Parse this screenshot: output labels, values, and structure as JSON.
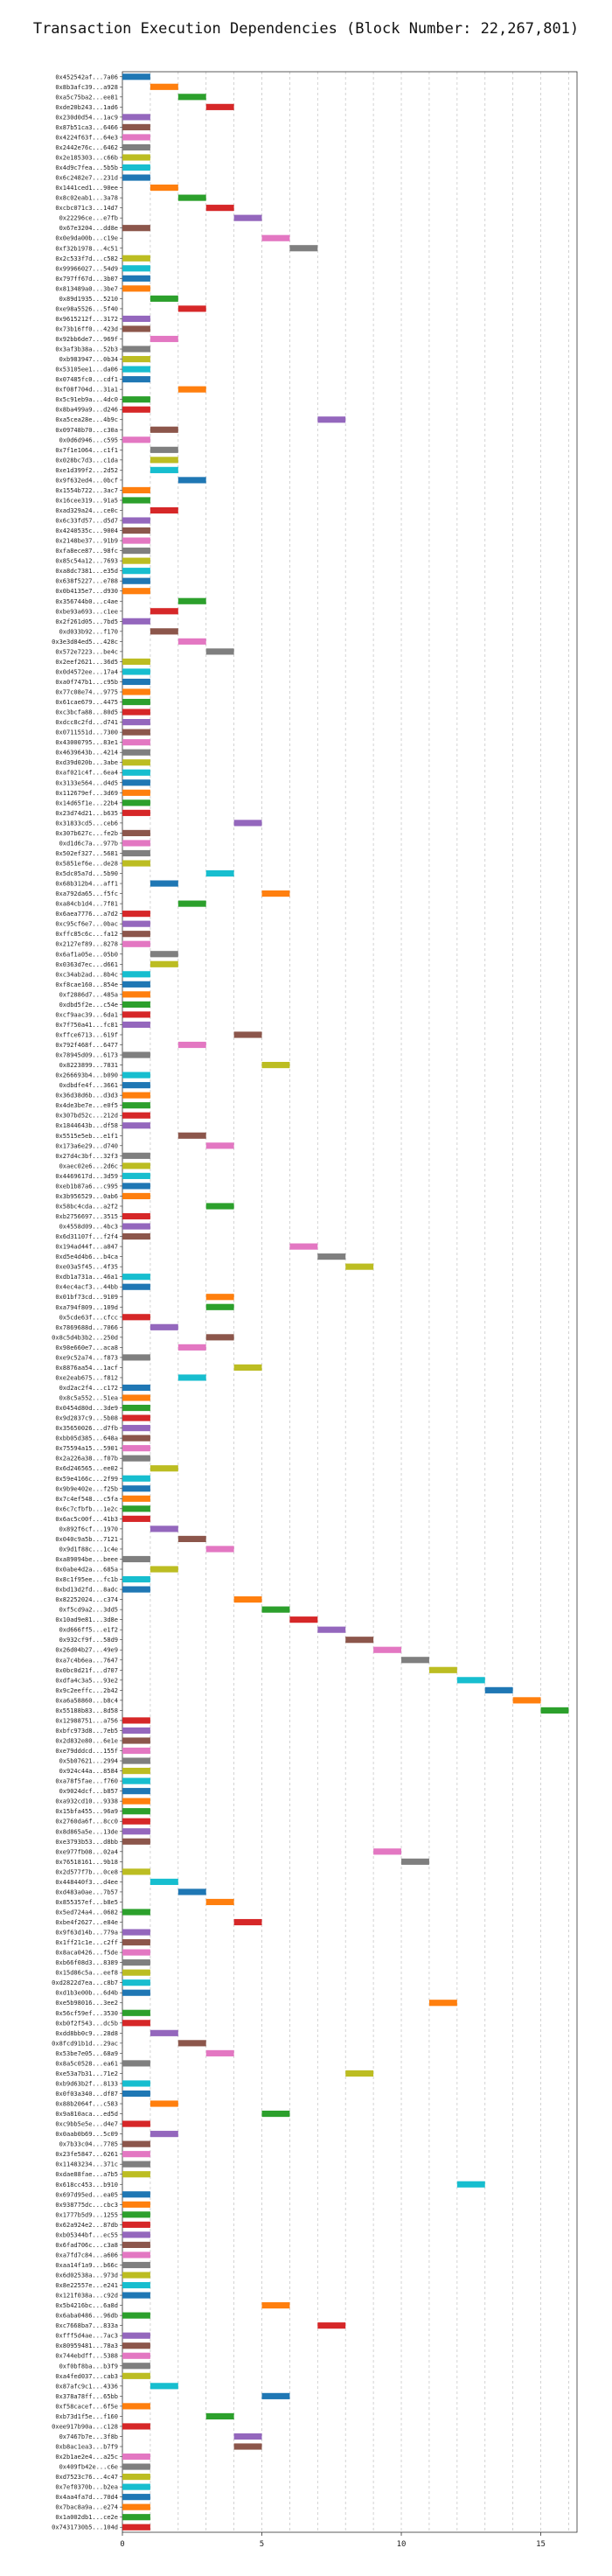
{
  "chart_data": {
    "type": "bar",
    "orientation": "horizontal",
    "title": "Transaction Execution Dependencies (Block Number: 22,267,801)",
    "xlabel": "",
    "ylabel": "",
    "xlim": [
      0,
      16.3
    ],
    "x_ticks": [
      0,
      5,
      10,
      15
    ],
    "grid": true,
    "palette": [
      "#1f77b4",
      "#ff7f0e",
      "#2ca02c",
      "#d62728",
      "#9467bd",
      "#8c564b",
      "#e377c2",
      "#7f7f7f",
      "#bcbd22",
      "#17becf"
    ],
    "transactions": [
      {
        "label": "0x452542af...7a06",
        "start": 0
      },
      {
        "label": "0x8b3afc39...a928",
        "start": 1
      },
      {
        "label": "0xa5c75ba2...ee81",
        "start": 2
      },
      {
        "label": "0xde20b243...1ad6",
        "start": 3
      },
      {
        "label": "0x230d0d54...1ac9",
        "start": 0
      },
      {
        "label": "0x87b51ca3...6466",
        "start": 0
      },
      {
        "label": "0x4224f63f...64e3",
        "start": 0
      },
      {
        "label": "0x2442e76c...6462",
        "start": 0
      },
      {
        "label": "0x2e185303...c66b",
        "start": 0
      },
      {
        "label": "0x4d9c7fea...5b5b",
        "start": 0
      },
      {
        "label": "0x6c2482e7...231d",
        "start": 0
      },
      {
        "label": "0x1441ced1...90ee",
        "start": 1
      },
      {
        "label": "0x8c02eab1...3a78",
        "start": 2
      },
      {
        "label": "0xcbc071c3...14d7",
        "start": 3
      },
      {
        "label": "0x22296ce...e7fb",
        "start": 4
      },
      {
        "label": "0x67e3204...dd8e",
        "start": 0
      },
      {
        "label": "0x0e9da00b...c19e",
        "start": 5
      },
      {
        "label": "0xf32b1978...4c51",
        "start": 6
      },
      {
        "label": "0x2c533f7d...c582",
        "start": 0
      },
      {
        "label": "0x99966027...54d9",
        "start": 0
      },
      {
        "label": "0x797ff67d...3b07",
        "start": 0
      },
      {
        "label": "0x813489a0...3be7",
        "start": 0
      },
      {
        "label": "0x89d1935...5210",
        "start": 1
      },
      {
        "label": "0xe98a5526...5f40",
        "start": 2
      },
      {
        "label": "0x9615212f...3172",
        "start": 0
      },
      {
        "label": "0x73b16ff0...423d",
        "start": 0
      },
      {
        "label": "0x92bb6de7...969f",
        "start": 1
      },
      {
        "label": "0x3af3b38a...52b3",
        "start": 0
      },
      {
        "label": "0xb983947...0b34",
        "start": 0
      },
      {
        "label": "0x53105ee1...da06",
        "start": 0
      },
      {
        "label": "0x07485fc0...cdf1",
        "start": 0
      },
      {
        "label": "0xf08f704d...31a1",
        "start": 2
      },
      {
        "label": "0x5c91eb9a...4dc0",
        "start": 0
      },
      {
        "label": "0x8ba499a9...d246",
        "start": 0
      },
      {
        "label": "0xa5cea28e...4b9c",
        "start": 7
      },
      {
        "label": "0x09748b70...c30a",
        "start": 1
      },
      {
        "label": "0x0d6d946...c595",
        "start": 0
      },
      {
        "label": "0x7f1e1064...c1f1",
        "start": 1
      },
      {
        "label": "0x028bc7d3...c1da",
        "start": 1
      },
      {
        "label": "0xe1d399f2...2d52",
        "start": 1
      },
      {
        "label": "0x9f632ed4...0bcf",
        "start": 2
      },
      {
        "label": "0x1554b722...3ac7",
        "start": 0
      },
      {
        "label": "0x16cee319...91a5",
        "start": 0
      },
      {
        "label": "0xad329a24...ce0c",
        "start": 1
      },
      {
        "label": "0x6c33fd57...d5d7",
        "start": 0
      },
      {
        "label": "0x4240535c...9004",
        "start": 0
      },
      {
        "label": "0x2148be37...91b9",
        "start": 0
      },
      {
        "label": "0xfa8ece87...98fc",
        "start": 0
      },
      {
        "label": "0x85c54a12...7693",
        "start": 0
      },
      {
        "label": "0xa8dc7381...e35d",
        "start": 0
      },
      {
        "label": "0x638f5227...e788",
        "start": 0
      },
      {
        "label": "0x0b4135e7...d930",
        "start": 0
      },
      {
        "label": "0x356744b0...c4ae",
        "start": 2
      },
      {
        "label": "0xbe93a693...c1ee",
        "start": 1
      },
      {
        "label": "0x2f261d05...7bd5",
        "start": 0
      },
      {
        "label": "0xd033b92...f170",
        "start": 1
      },
      {
        "label": "0x3e3d84ed5...428c",
        "start": 2
      },
      {
        "label": "0x572e7223...be4c",
        "start": 3
      },
      {
        "label": "0x2eef2621...36d5",
        "start": 0
      },
      {
        "label": "0x0d4572ee...17a4",
        "start": 0
      },
      {
        "label": "0xa0f747b1...c95b",
        "start": 0
      },
      {
        "label": "0x77c08e74...9775",
        "start": 0
      },
      {
        "label": "0x61cae679...4475",
        "start": 0
      },
      {
        "label": "0xc3bcfa88...80d5",
        "start": 0
      },
      {
        "label": "0xdcc8c2fd...d741",
        "start": 0
      },
      {
        "label": "0x0711551d...7300",
        "start": 0
      },
      {
        "label": "0x43000795...83e1",
        "start": 0
      },
      {
        "label": "0x4639643b...4214",
        "start": 0
      },
      {
        "label": "0xd39d020b...3abe",
        "start": 0
      },
      {
        "label": "0xaf021c4f...6ea4",
        "start": 0
      },
      {
        "label": "0x3133e564...d4d5",
        "start": 0
      },
      {
        "label": "0x112679ef...3d69",
        "start": 0
      },
      {
        "label": "0x14d65f1e...22b4",
        "start": 0
      },
      {
        "label": "0x23d74d21...b635",
        "start": 0
      },
      {
        "label": "0x31833cd5...ceb6",
        "start": 4
      },
      {
        "label": "0x307b627c...fe2b",
        "start": 0
      },
      {
        "label": "0xd1d6c7a...977b",
        "start": 0
      },
      {
        "label": "0x502ef327...5681",
        "start": 0
      },
      {
        "label": "0x5851ef6e...de28",
        "start": 0
      },
      {
        "label": "0x5dc05a7d...5b90",
        "start": 3
      },
      {
        "label": "0x68b312b4...aff1",
        "start": 1
      },
      {
        "label": "0xa792da65...f5fc",
        "start": 5
      },
      {
        "label": "0xa84cb1d4...7f81",
        "start": 2
      },
      {
        "label": "0x6aea7776...a7d2",
        "start": 0
      },
      {
        "label": "0xc95cf6e7...0bac",
        "start": 0
      },
      {
        "label": "0xffc85c6c...fa12",
        "start": 0
      },
      {
        "label": "0x2127ef89...8278",
        "start": 0
      },
      {
        "label": "0x6af1a05e...05b0",
        "start": 1
      },
      {
        "label": "0x0363d7ec...d661",
        "start": 1
      },
      {
        "label": "0xc34ab2ad...8b4c",
        "start": 0
      },
      {
        "label": "0xf8cae160...854e",
        "start": 0
      },
      {
        "label": "0xf2886d7...485a",
        "start": 0
      },
      {
        "label": "0xdbd5f2e...c54e",
        "start": 0
      },
      {
        "label": "0xcf9aac39...6da1",
        "start": 0
      },
      {
        "label": "0x7f750a41...fc81",
        "start": 0
      },
      {
        "label": "0xffce6713...619f",
        "start": 4
      },
      {
        "label": "0x792f468f...6477",
        "start": 2
      },
      {
        "label": "0x78945d09...6173",
        "start": 0
      },
      {
        "label": "0x8223899...7831",
        "start": 5
      },
      {
        "label": "0x266693b4...b090",
        "start": 0
      },
      {
        "label": "0xdbdfe4f...3661",
        "start": 0
      },
      {
        "label": "0x36d38d6b...d3d3",
        "start": 0
      },
      {
        "label": "0x4de3be7e...e0f5",
        "start": 0
      },
      {
        "label": "0x307bd52c...212d",
        "start": 0
      },
      {
        "label": "0x1844643b...df58",
        "start": 0
      },
      {
        "label": "0x5515e5eb...e1f1",
        "start": 2
      },
      {
        "label": "0x173a6e29...d740",
        "start": 3
      },
      {
        "label": "0x27d4c3bf...32f3",
        "start": 0
      },
      {
        "label": "0xaec02e6...2d6c",
        "start": 0
      },
      {
        "label": "0x4469617d...3d59",
        "start": 0
      },
      {
        "label": "0xeb1b87a6...c995",
        "start": 0
      },
      {
        "label": "0x3b956529...0ab6",
        "start": 0
      },
      {
        "label": "0x58bc4cda...a2f2",
        "start": 3
      },
      {
        "label": "0xb2756697...3515",
        "start": 0
      },
      {
        "label": "0x4558d09...4bc3",
        "start": 0
      },
      {
        "label": "0x6d31107f...f2f4",
        "start": 0
      },
      {
        "label": "0x194ad44f...a847",
        "start": 6
      },
      {
        "label": "0xd5e4d4b6...b4ca",
        "start": 7
      },
      {
        "label": "0xe03a5f45...4f35",
        "start": 8
      },
      {
        "label": "0xdb1a731a...46a1",
        "start": 0
      },
      {
        "label": "0x4ec4acf3...44bb",
        "start": 0
      },
      {
        "label": "0x01bf73cd...9109",
        "start": 3
      },
      {
        "label": "0xa794f809...109d",
        "start": 3
      },
      {
        "label": "0x5cde63f...cfcc",
        "start": 0
      },
      {
        "label": "0x7869688d...7066",
        "start": 1
      },
      {
        "label": "0x8c5d4b3b2...250d",
        "start": 3
      },
      {
        "label": "0x98e660e7...aca8",
        "start": 2
      },
      {
        "label": "0xe9c52a74...f873",
        "start": 0
      },
      {
        "label": "0x8876aa54...1acf",
        "start": 4
      },
      {
        "label": "0xe2eab675...f812",
        "start": 2
      },
      {
        "label": "0xd2ac2f4...c172",
        "start": 0
      },
      {
        "label": "0x8c5a552...51ea",
        "start": 0
      },
      {
        "label": "0x0454d80d...3de9",
        "start": 0
      },
      {
        "label": "0x9d2837c9...5b08",
        "start": 0
      },
      {
        "label": "0x35650026...d7fb",
        "start": 0
      },
      {
        "label": "0xbb05d385...648a",
        "start": 0
      },
      {
        "label": "0x75594a15...5901",
        "start": 0
      },
      {
        "label": "0x2a226a38...f07b",
        "start": 0
      },
      {
        "label": "0x6d246565...ee02",
        "start": 1
      },
      {
        "label": "0x59e4166c...2f99",
        "start": 0
      },
      {
        "label": "0x9b9e402e...f25b",
        "start": 0
      },
      {
        "label": "0x7c4ef548...c5fa",
        "start": 0
      },
      {
        "label": "0x6c7cfbfb...1e2c",
        "start": 0
      },
      {
        "label": "0x6ac5c00f...41b3",
        "start": 0
      },
      {
        "label": "0x892f6cf...1970",
        "start": 1
      },
      {
        "label": "0x040c9a5b...7121",
        "start": 2
      },
      {
        "label": "0x9d1f88c...1c4e",
        "start": 3
      },
      {
        "label": "0xa89094be...beee",
        "start": 0
      },
      {
        "label": "0x0abe4d2a...685a",
        "start": 1
      },
      {
        "label": "0x8c1f95ee...fc1b",
        "start": 0
      },
      {
        "label": "0xbd13d2fd...8adc",
        "start": 0
      },
      {
        "label": "0x82252024...c374",
        "start": 4
      },
      {
        "label": "0xf5cd9a2...3dd5",
        "start": 5
      },
      {
        "label": "0x10ad9e81...3d8e",
        "start": 6
      },
      {
        "label": "0xd666ff5...e1f2",
        "start": 7
      },
      {
        "label": "0x932cf9f...58d9",
        "start": 8
      },
      {
        "label": "0x26d04b27...49e9",
        "start": 9
      },
      {
        "label": "0xa7c4b6ea...7647",
        "start": 10
      },
      {
        "label": "0x0bc0d21f...d707",
        "start": 11
      },
      {
        "label": "0xdfa4c3a5...93e2",
        "start": 12
      },
      {
        "label": "0x9c2eeffc...2b42",
        "start": 13
      },
      {
        "label": "0xa6a58860...b8c4",
        "start": 14
      },
      {
        "label": "0x55188b83...8d58",
        "start": 15
      },
      {
        "label": "0x12988751...a756",
        "start": 0
      },
      {
        "label": "0xbfc973d8...7eb5",
        "start": 0
      },
      {
        "label": "0x2d832e80...6e1e",
        "start": 0
      },
      {
        "label": "0xe79dddcd...155f",
        "start": 0
      },
      {
        "label": "0x5b07621...2994",
        "start": 0
      },
      {
        "label": "0x924c44a...8584",
        "start": 0
      },
      {
        "label": "0xa78f5fae...f760",
        "start": 0
      },
      {
        "label": "0x9024dcf...b857",
        "start": 0
      },
      {
        "label": "0xa932cd10...9338",
        "start": 0
      },
      {
        "label": "0x15bfa455...96a9",
        "start": 0
      },
      {
        "label": "0x2760da6f...8cc0",
        "start": 0
      },
      {
        "label": "0x8d865a5e...13de",
        "start": 0
      },
      {
        "label": "0xe3793b53...d8bb",
        "start": 0
      },
      {
        "label": "0xe977fb08...02a4",
        "start": 9
      },
      {
        "label": "0x76518161...9b18",
        "start": 10
      },
      {
        "label": "0x2d577f7b...0ce8",
        "start": 0
      },
      {
        "label": "0x448440f3...d4ee",
        "start": 1
      },
      {
        "label": "0xd483a0ae...7b57",
        "start": 2
      },
      {
        "label": "0x855357ef...b8e5",
        "start": 3
      },
      {
        "label": "0x5ed724a4...0682",
        "start": 0
      },
      {
        "label": "0xbe4f2627...e84e",
        "start": 4
      },
      {
        "label": "0x9f63d14b...779a",
        "start": 0
      },
      {
        "label": "0x1ff21c1e...c2ff",
        "start": 0
      },
      {
        "label": "0x8aca0426...f5de",
        "start": 0
      },
      {
        "label": "0xb66f08d3...8389",
        "start": 0
      },
      {
        "label": "0x15d86c5a...eef8",
        "start": 0
      },
      {
        "label": "0xd2822d7ea...c8b7",
        "start": 0
      },
      {
        "label": "0xd1b3e00b...6d4b",
        "start": 0
      },
      {
        "label": "0xe5b98016...3ee2",
        "start": 11
      },
      {
        "label": "0x56cf59ef...3530",
        "start": 0
      },
      {
        "label": "0xb0f2f543...dc5b",
        "start": 0
      },
      {
        "label": "0xdd8bb0c9...28d8",
        "start": 1
      },
      {
        "label": "0x8fcd91b1d...29ac",
        "start": 2
      },
      {
        "label": "0x53be7e05...68a9",
        "start": 3
      },
      {
        "label": "0x8a5c0528...ea61",
        "start": 0
      },
      {
        "label": "0xe53a7b31...71e2",
        "start": 8
      },
      {
        "label": "0xb9d63b2f...8133",
        "start": 0
      },
      {
        "label": "0x0f03a340...df87",
        "start": 0
      },
      {
        "label": "0x88b2064f...c583",
        "start": 1
      },
      {
        "label": "0x9a810aca...ed5d",
        "start": 5
      },
      {
        "label": "0xc9bb5e5e...d4e7",
        "start": 0
      },
      {
        "label": "0x0aab0b69...5c09",
        "start": 1
      },
      {
        "label": "0x7b33c04...7785",
        "start": 0
      },
      {
        "label": "0x23fe5847...6261",
        "start": 0
      },
      {
        "label": "0x11483234...371c",
        "start": 0
      },
      {
        "label": "0xdae88fae...a7b5",
        "start": 0
      },
      {
        "label": "0x618cc453...b910",
        "start": 12
      },
      {
        "label": "0x697d95ed...ea05",
        "start": 0
      },
      {
        "label": "0x938775dc...cbc3",
        "start": 0
      },
      {
        "label": "0x1777b5d9...1255",
        "start": 0
      },
      {
        "label": "0x62a924e2...87db",
        "start": 0
      },
      {
        "label": "0xb05344bf...ec55",
        "start": 0
      },
      {
        "label": "0x6fad706c...c3a8",
        "start": 0
      },
      {
        "label": "0xa7fd7c84...a606",
        "start": 0
      },
      {
        "label": "0xaa14f1a9...b66c",
        "start": 0
      },
      {
        "label": "0x6d02538a...973d",
        "start": 0
      },
      {
        "label": "0x8e22557e...e241",
        "start": 0
      },
      {
        "label": "0x121f038a...c92d",
        "start": 0
      },
      {
        "label": "0x5b4216bc...6a8d",
        "start": 5
      },
      {
        "label": "0x6aba0486...96db",
        "start": 0
      },
      {
        "label": "0xc7668ba7...833a",
        "start": 7
      },
      {
        "label": "0xfff5d4ae...7ac3",
        "start": 0
      },
      {
        "label": "0x80959481...78a3",
        "start": 0
      },
      {
        "label": "0x744ebdff...5388",
        "start": 0
      },
      {
        "label": "0xf0bf8ba...b3f9",
        "start": 0
      },
      {
        "label": "0xa4fed037...cab3",
        "start": 0
      },
      {
        "label": "0x87afc9c1...4336",
        "start": 1
      },
      {
        "label": "0x378a78ff...65bb",
        "start": 5
      },
      {
        "label": "0xf58cacef...6f5e",
        "start": 0
      },
      {
        "label": "0xb73d1f5e...f160",
        "start": 3
      },
      {
        "label": "0xee917b90a...c128",
        "start": 0
      },
      {
        "label": "0x7467b7e...3f8b",
        "start": 4
      },
      {
        "label": "0xb8ac1ea3...b7f9",
        "start": 4
      },
      {
        "label": "0x2b1ae2e4...a25c",
        "start": 0
      },
      {
        "label": "0x409fb42e...c6e",
        "start": 0
      },
      {
        "label": "0xd7523c76...4c47",
        "start": 0
      },
      {
        "label": "0x7ef0370b...b2ea",
        "start": 0
      },
      {
        "label": "0x4aa4fa7d...70d4",
        "start": 0
      },
      {
        "label": "0x7bac8a9a...e274",
        "start": 0
      },
      {
        "label": "0x1a002db1...ce2e",
        "start": 0
      },
      {
        "label": "0x7431730b5...104d",
        "start": 0
      }
    ]
  }
}
